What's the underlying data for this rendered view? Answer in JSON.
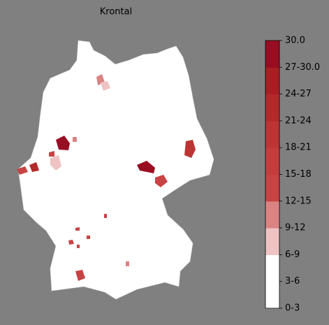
{
  "title": "Krontal",
  "colorbar": {
    "labels": [
      "0-3",
      "3-6",
      "6-9",
      "9-12",
      "12-15",
      "15-18",
      "18-21",
      "21-24",
      "24-27",
      "27-30.0",
      "30.0"
    ],
    "colors": [
      "#ffffff",
      "#ffffff",
      "#efc3c3",
      "#db8383",
      "#c84343",
      "#c43d3d",
      "#bd3434",
      "#b32a2a",
      "#a81e22",
      "#990d22"
    ]
  }
}
